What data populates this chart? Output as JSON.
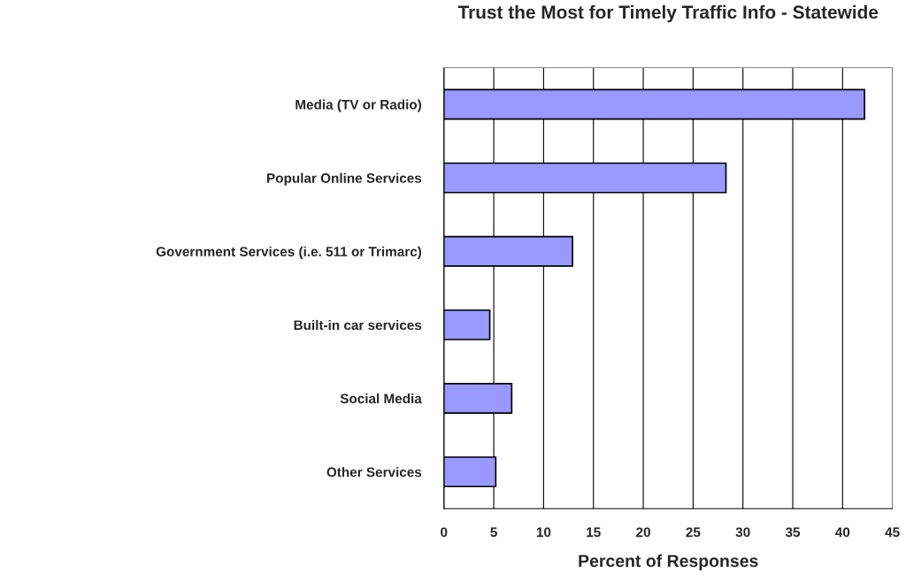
{
  "chart_data": {
    "type": "bar",
    "orientation": "horizontal",
    "title": "Trust the Most for Timely Traffic Info - Statewide",
    "xlabel": "Percent of Responses",
    "categories": [
      "Media (TV or Radio)",
      "Popular Online Services",
      "Government Services (i.e. 511 or Trimarc)",
      "Built-in car services",
      "Social Media",
      "Other Services"
    ],
    "values": [
      42.2,
      28.3,
      12.9,
      4.6,
      6.8,
      5.2
    ],
    "color": "#9999ff",
    "xlim": [
      0,
      45
    ],
    "xticks": [
      0,
      5,
      10,
      15,
      20,
      25,
      30,
      35,
      40,
      45
    ],
    "grid": "x",
    "legend": false
  }
}
